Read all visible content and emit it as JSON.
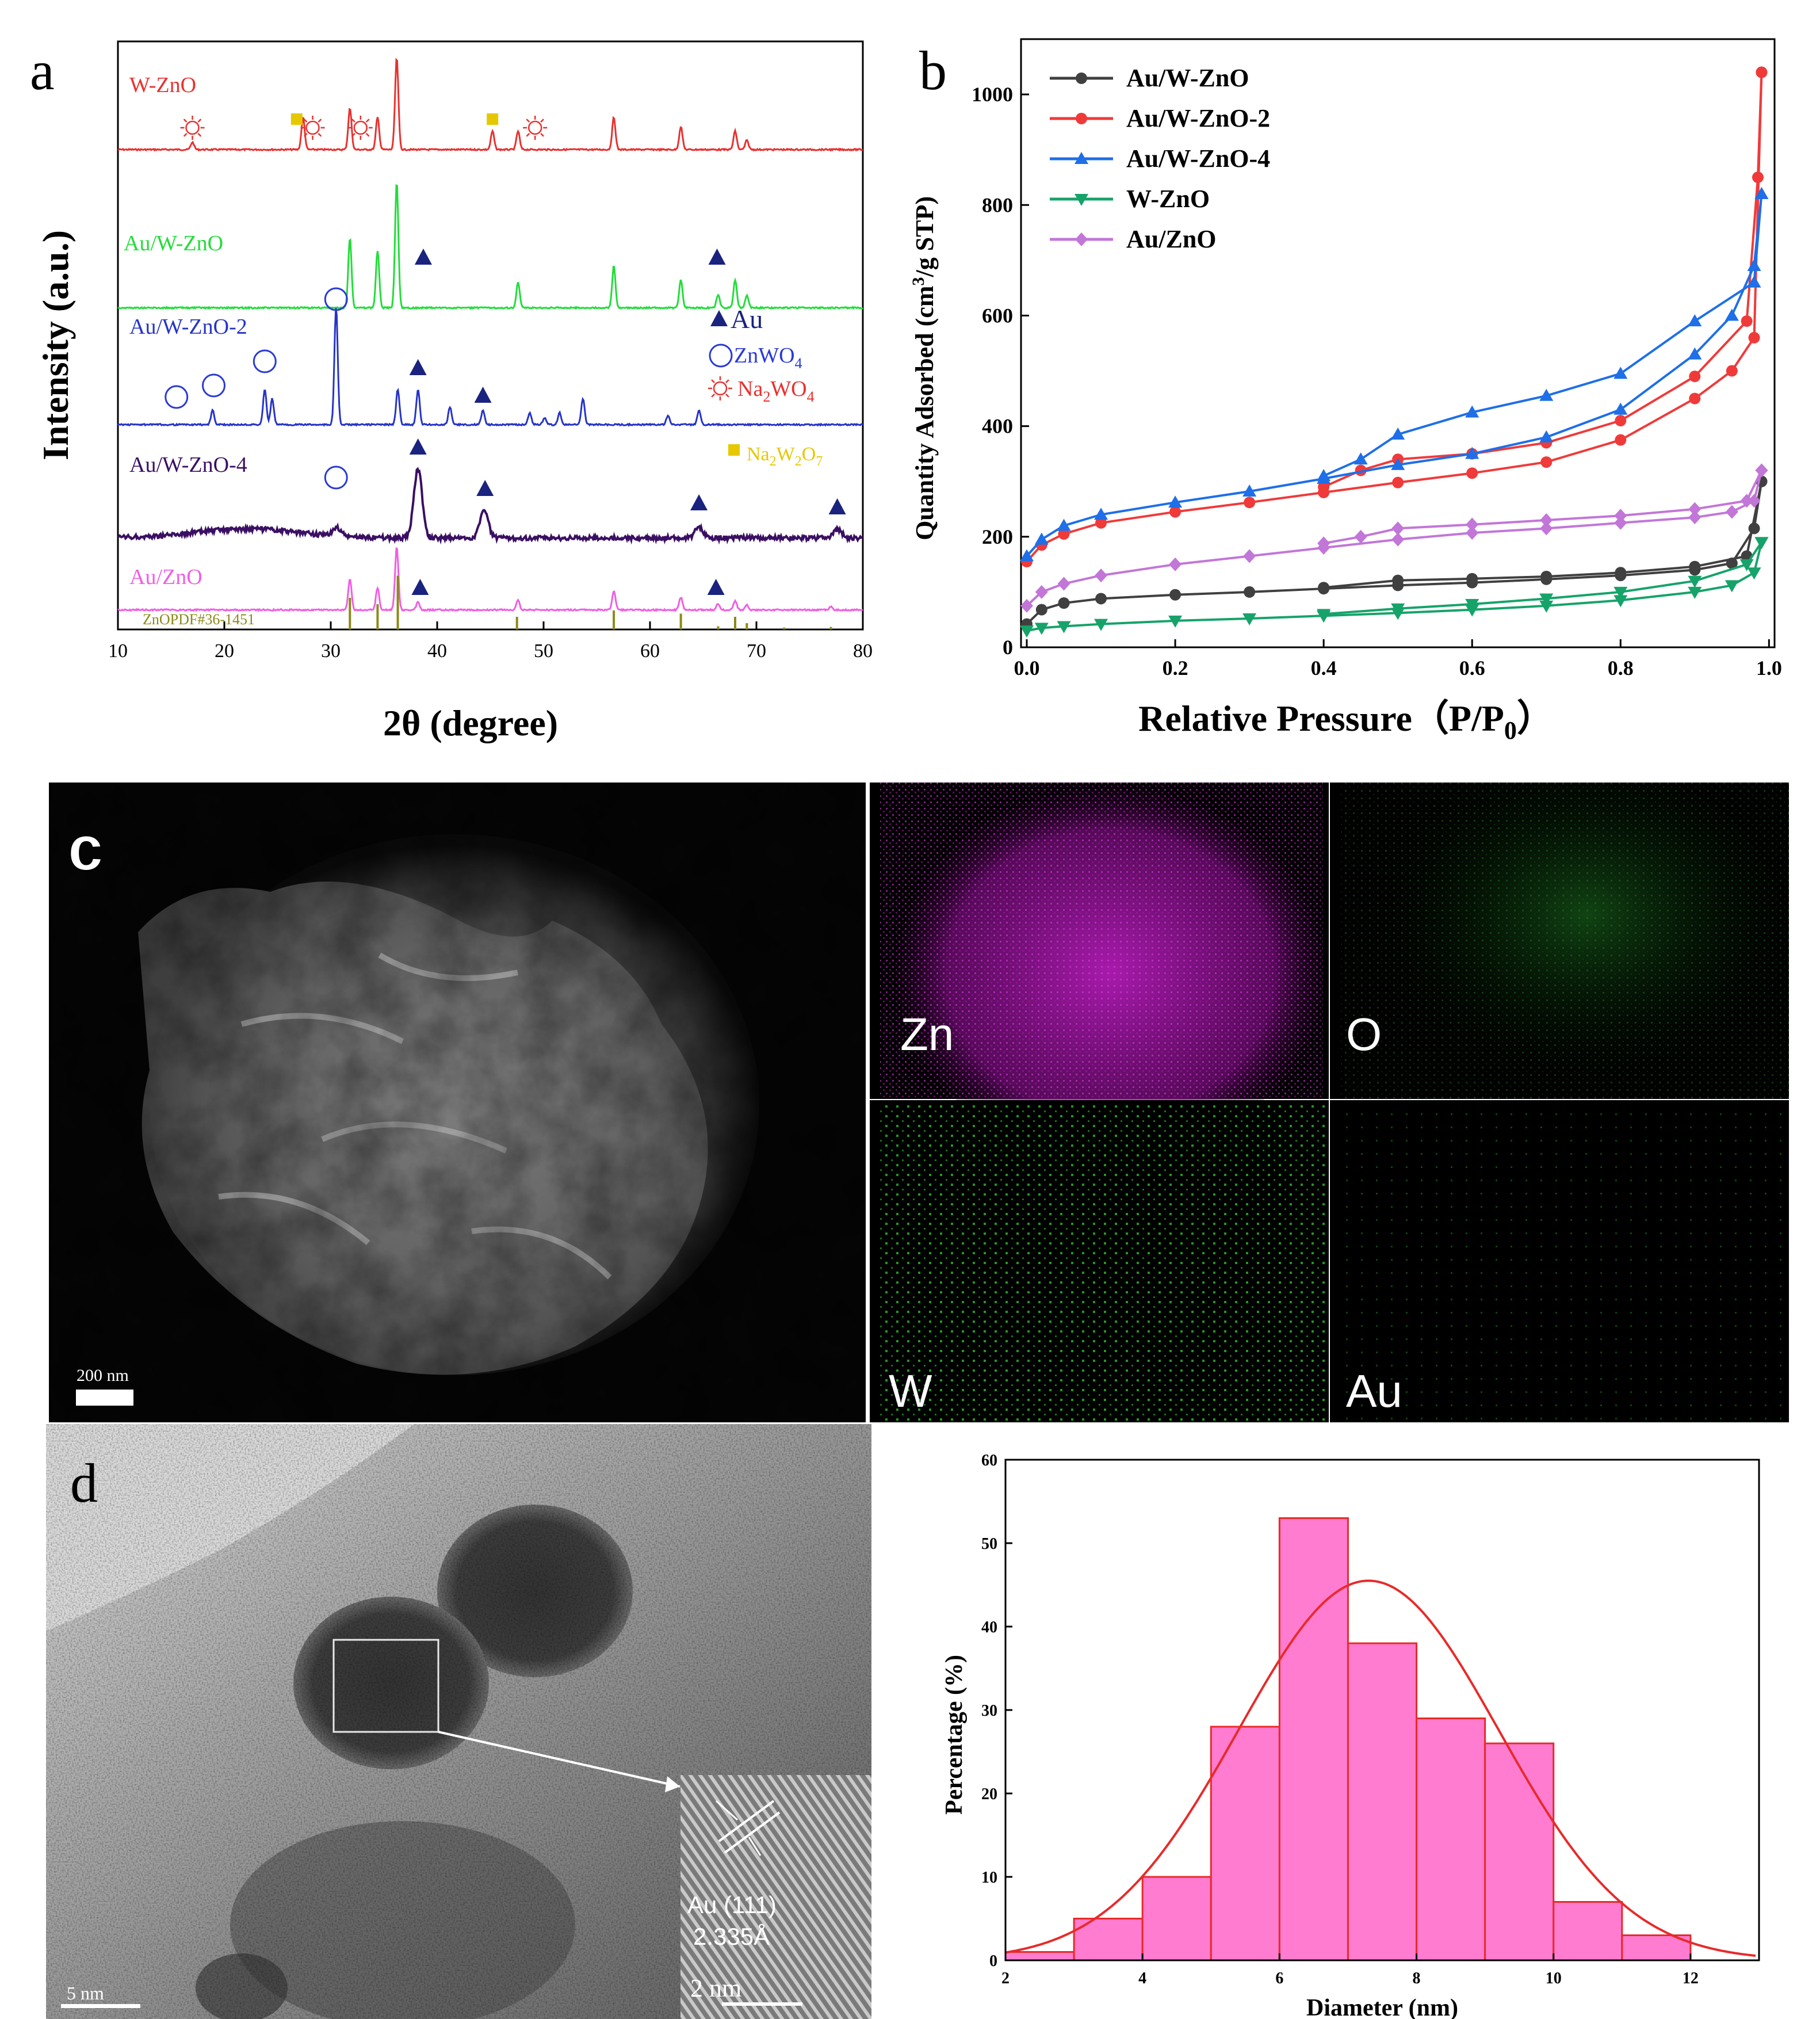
{
  "panels": {
    "a": {
      "letter": "a"
    },
    "b": {
      "letter": "b"
    },
    "c": {
      "letter": "c",
      "scalebar": "200 nm",
      "maps": [
        {
          "label": "Zn",
          "color": "#c022c8"
        },
        {
          "label": "O",
          "color": "#22a024"
        },
        {
          "label": "W",
          "color": "#2fc92a"
        },
        {
          "label": "Au",
          "color": "#1b9a2a"
        }
      ]
    },
    "d": {
      "letter": "d",
      "scalebar": "5 nm",
      "inset": {
        "plane": "Au (111)",
        "spacing": "2.335Å",
        "scalebar": "2 nm"
      }
    }
  },
  "chart_data": [
    {
      "id": "xrd",
      "type": "line",
      "title": "",
      "xlabel": "2θ (degree)",
      "ylabel": "Intensity (a.u.)",
      "xlim": [
        10,
        80
      ],
      "xticks": [
        10,
        20,
        30,
        40,
        50,
        60,
        70,
        80
      ],
      "series": [
        {
          "name": "W-ZnO",
          "color": "#e8312f",
          "peaks": [
            [
              17,
              0.08
            ],
            [
              27.4,
              0.35
            ],
            [
              31.8,
              0.45
            ],
            [
              34.4,
              0.35
            ],
            [
              36.2,
              1.0
            ],
            [
              45.2,
              0.2
            ],
            [
              47.6,
              0.2
            ],
            [
              56.6,
              0.35
            ],
            [
              62.9,
              0.25
            ],
            [
              68,
              0.2
            ],
            [
              69.1,
              0.1
            ]
          ]
        },
        {
          "name": "Au/W-ZnO",
          "color": "#22dd3a",
          "peaks": [
            [
              31.8,
              0.55
            ],
            [
              34.4,
              0.45
            ],
            [
              36.2,
              1.0
            ],
            [
              47.6,
              0.2
            ],
            [
              56.6,
              0.33
            ],
            [
              62.9,
              0.22
            ],
            [
              66.4,
              0.1
            ],
            [
              68,
              0.22
            ],
            [
              69.1,
              0.1
            ]
          ]
        },
        {
          "name": "Au/W-ZnO-2",
          "color": "#2634c8",
          "peaks": [
            [
              18.9,
              0.12
            ],
            [
              23.8,
              0.3
            ],
            [
              24.5,
              0.22
            ],
            [
              30.5,
              1.0
            ],
            [
              36.3,
              0.3
            ],
            [
              38.2,
              0.3
            ],
            [
              41.2,
              0.15
            ],
            [
              44.3,
              0.12
            ],
            [
              48.7,
              0.1
            ],
            [
              50.1,
              0.06
            ],
            [
              51.5,
              0.1
            ],
            [
              53.7,
              0.22
            ],
            [
              61.7,
              0.08
            ],
            [
              64.6,
              0.12
            ]
          ]
        },
        {
          "name": "Au/W-ZnO-4",
          "color": "#3a0f63",
          "peaks": [
            [
              30.6,
              0.12
            ],
            [
              38.2,
              1.0
            ],
            [
              44.4,
              0.4
            ],
            [
              64.6,
              0.15
            ],
            [
              77.6,
              0.12
            ]
          ]
        },
        {
          "name": "Au/ZnO",
          "color": "#f05ee4",
          "peaks": [
            [
              31.8,
              0.5
            ],
            [
              34.4,
              0.35
            ],
            [
              36.2,
              1.0
            ],
            [
              38.2,
              0.12
            ],
            [
              47.6,
              0.15
            ],
            [
              56.6,
              0.3
            ],
            [
              62.9,
              0.2
            ],
            [
              66.4,
              0.1
            ],
            [
              68,
              0.15
            ],
            [
              69.1,
              0.08
            ],
            [
              77,
              0.05
            ]
          ]
        }
      ],
      "reference": {
        "label": "ZnOPDF#36-1451",
        "color": "#8b8a1a",
        "lines": [
          [
            31.8,
            0.5
          ],
          [
            34.4,
            0.4
          ],
          [
            36.3,
            0.85
          ],
          [
            47.5,
            0.2
          ],
          [
            56.6,
            0.3
          ],
          [
            62.9,
            0.25
          ],
          [
            66.4,
            0.05
          ],
          [
            68,
            0.2
          ],
          [
            69.1,
            0.1
          ],
          [
            72.6,
            0.03
          ],
          [
            77,
            0.04
          ]
        ]
      },
      "markers": [
        {
          "series": "W-ZnO",
          "type": "Na2WO4",
          "x": [
            17,
            28.3,
            32.8,
            49.2
          ]
        },
        {
          "series": "W-ZnO",
          "type": "Na2W2O7",
          "x": [
            26.8,
            45.2
          ]
        },
        {
          "series": "Au/W-ZnO",
          "type": "Au",
          "x": [
            38.7,
            66.3
          ]
        },
        {
          "series": "Au/W-ZnO-2",
          "type": "ZnWO4",
          "x": [
            15.5,
            19,
            23.8,
            30.5
          ]
        },
        {
          "series": "Au/W-ZnO-2",
          "type": "Au",
          "x": [
            38.2,
            44.3
          ]
        },
        {
          "series": "Au/W-ZnO-4",
          "type": "ZnWO4",
          "x": [
            30.5
          ]
        },
        {
          "series": "Au/W-ZnO-4",
          "type": "Au",
          "x": [
            38.2,
            44.5,
            64.6,
            77.6
          ]
        },
        {
          "series": "Au/ZnO",
          "type": "Au",
          "x": [
            38.4,
            66.2
          ]
        }
      ],
      "legend": [
        {
          "type": "Au",
          "label": "Au",
          "color": "#1a237e"
        },
        {
          "type": "ZnWO4",
          "label": "ZnWO",
          "sub": "4",
          "color": "#2a3ad6"
        },
        {
          "type": "Na2WO4",
          "label": "Na",
          "sub": "2",
          "label2": "WO",
          "sub2": "4",
          "color": "#e8312f"
        },
        {
          "type": "Na2W2O7",
          "label": "Na",
          "sub": "2",
          "label2": "W",
          "sub2": "2",
          "label3": "O",
          "sub3": "7",
          "color": "#e6c800"
        }
      ]
    },
    {
      "id": "bet",
      "type": "line",
      "title": "",
      "xlabel": "Relative Pressure（P/P",
      "xlabel_sub": "0",
      "xlabel_end": "）",
      "ylabel": "Quantity Adsorbed (cm",
      "ylabel_sup": "3",
      "ylabel_end": "/g STP)",
      "xlim": [
        0,
        1.0
      ],
      "ylim": [
        0,
        1100
      ],
      "xticks": [
        0.0,
        0.2,
        0.4,
        0.6,
        0.8,
        1.0
      ],
      "xtick_labels": [
        "0.0",
        "0.2",
        "0.4",
        "0.6",
        "0.8",
        "1.0"
      ],
      "yticks": [
        0,
        200,
        400,
        600,
        800,
        1000
      ],
      "legend_position": "top-left",
      "series": [
        {
          "name": "Au/W-ZnO",
          "color": "#404040",
          "marker": "circle",
          "adsorption": [
            [
              0,
              42
            ],
            [
              0.02,
              68
            ],
            [
              0.05,
              80
            ],
            [
              0.1,
              88
            ],
            [
              0.2,
              95
            ],
            [
              0.3,
              100
            ],
            [
              0.4,
              106
            ],
            [
              0.5,
              112
            ],
            [
              0.6,
              117
            ],
            [
              0.7,
              123
            ],
            [
              0.8,
              130
            ],
            [
              0.9,
              140
            ],
            [
              0.95,
              152
            ],
            [
              0.98,
              215
            ],
            [
              0.99,
              300
            ]
          ],
          "desorption": [
            [
              0.99,
              300
            ],
            [
              0.97,
              165
            ],
            [
              0.9,
              146
            ],
            [
              0.8,
              135
            ],
            [
              0.7,
              128
            ],
            [
              0.6,
              124
            ],
            [
              0.5,
              121
            ],
            [
              0.4,
              108
            ]
          ]
        },
        {
          "name": "Au/W-ZnO-2",
          "color": "#f03a3a",
          "marker": "circle",
          "adsorption": [
            [
              0,
              155
            ],
            [
              0.02,
              185
            ],
            [
              0.05,
              205
            ],
            [
              0.1,
              225
            ],
            [
              0.2,
              245
            ],
            [
              0.3,
              262
            ],
            [
              0.4,
              280
            ],
            [
              0.5,
              298
            ],
            [
              0.6,
              315
            ],
            [
              0.7,
              335
            ],
            [
              0.8,
              375
            ],
            [
              0.9,
              450
            ],
            [
              0.95,
              500
            ],
            [
              0.98,
              560
            ],
            [
              0.99,
              1040
            ]
          ],
          "desorption": [
            [
              0.99,
              1040
            ],
            [
              0.985,
              850
            ],
            [
              0.97,
              590
            ],
            [
              0.9,
              490
            ],
            [
              0.8,
              410
            ],
            [
              0.7,
              370
            ],
            [
              0.6,
              350
            ],
            [
              0.5,
              340
            ],
            [
              0.45,
              320
            ],
            [
              0.4,
              290
            ]
          ]
        },
        {
          "name": "Au/W-ZnO-4",
          "color": "#1e6fe8",
          "marker": "triangle",
          "adsorption": [
            [
              0,
              165
            ],
            [
              0.02,
              195
            ],
            [
              0.05,
              220
            ],
            [
              0.1,
              240
            ],
            [
              0.2,
              262
            ],
            [
              0.3,
              282
            ],
            [
              0.4,
              305
            ],
            [
              0.5,
              330
            ],
            [
              0.6,
              350
            ],
            [
              0.7,
              380
            ],
            [
              0.8,
              430
            ],
            [
              0.9,
              530
            ],
            [
              0.95,
              600
            ],
            [
              0.98,
              690
            ],
            [
              0.99,
              820
            ]
          ],
          "desorption": [
            [
              0.99,
              820
            ],
            [
              0.98,
              660
            ],
            [
              0.9,
              590
            ],
            [
              0.8,
              495
            ],
            [
              0.7,
              455
            ],
            [
              0.6,
              425
            ],
            [
              0.5,
              385
            ],
            [
              0.45,
              340
            ],
            [
              0.4,
              310
            ]
          ]
        },
        {
          "name": "W-ZnO",
          "color": "#16a36a",
          "marker": "triangle-down",
          "adsorption": [
            [
              0,
              30
            ],
            [
              0.02,
              35
            ],
            [
              0.05,
              38
            ],
            [
              0.1,
              42
            ],
            [
              0.2,
              48
            ],
            [
              0.3,
              52
            ],
            [
              0.4,
              57
            ],
            [
              0.5,
              62
            ],
            [
              0.6,
              68
            ],
            [
              0.7,
              75
            ],
            [
              0.8,
              85
            ],
            [
              0.9,
              100
            ],
            [
              0.95,
              112
            ],
            [
              0.98,
              135
            ],
            [
              0.99,
              190
            ]
          ],
          "desorption": [
            [
              0.99,
              190
            ],
            [
              0.97,
              150
            ],
            [
              0.9,
              120
            ],
            [
              0.8,
              100
            ],
            [
              0.7,
              88
            ],
            [
              0.6,
              78
            ],
            [
              0.5,
              70
            ],
            [
              0.4,
              60
            ]
          ]
        },
        {
          "name": "Au/ZnO",
          "color": "#c276d8",
          "marker": "diamond",
          "adsorption": [
            [
              0,
              75
            ],
            [
              0.02,
              100
            ],
            [
              0.05,
              115
            ],
            [
              0.1,
              130
            ],
            [
              0.2,
              150
            ],
            [
              0.3,
              165
            ],
            [
              0.4,
              180
            ],
            [
              0.5,
              195
            ],
            [
              0.6,
              207
            ],
            [
              0.7,
              215
            ],
            [
              0.8,
              225
            ],
            [
              0.9,
              235
            ],
            [
              0.95,
              245
            ],
            [
              0.98,
              265
            ],
            [
              0.99,
              320
            ]
          ],
          "desorption": [
            [
              0.99,
              320
            ],
            [
              0.97,
              265
            ],
            [
              0.9,
              250
            ],
            [
              0.8,
              238
            ],
            [
              0.7,
              230
            ],
            [
              0.6,
              222
            ],
            [
              0.5,
              215
            ],
            [
              0.45,
              200
            ],
            [
              0.4,
              188
            ]
          ]
        }
      ]
    },
    {
      "id": "hist",
      "type": "bar",
      "title": "",
      "xlabel": "Diameter (nm)",
      "ylabel": "Percentage (%)",
      "bins": [
        [
          2,
          3
        ],
        [
          3,
          4
        ],
        [
          4,
          5
        ],
        [
          5,
          6
        ],
        [
          6,
          7
        ],
        [
          7,
          8
        ],
        [
          8,
          9
        ],
        [
          9,
          10
        ],
        [
          10,
          11
        ],
        [
          11,
          12
        ]
      ],
      "values": [
        1,
        5,
        10,
        28,
        53,
        38,
        29,
        26,
        7,
        3
      ],
      "xlim": [
        2,
        13
      ],
      "ylim": [
        0,
        60
      ],
      "xticks": [
        2,
        4,
        6,
        8,
        10,
        12
      ],
      "yticks": [
        0,
        10,
        20,
        30,
        40,
        50,
        60
      ],
      "bar_color": "#ff7cd0",
      "fit": {
        "type": "gaussian",
        "mu": 7.3,
        "sigma": 1.9,
        "amp": 45.5,
        "color": "#e82a2a"
      }
    }
  ]
}
